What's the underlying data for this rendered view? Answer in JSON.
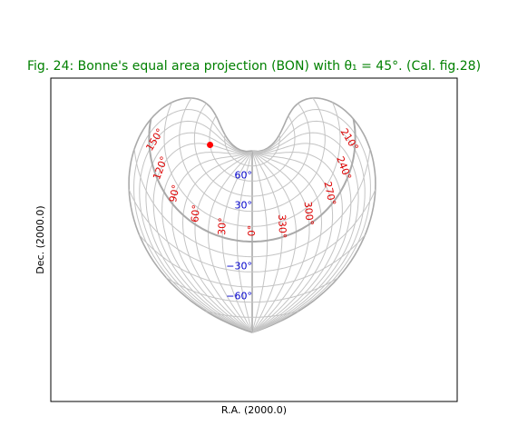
{
  "chart_data": {
    "type": "bonne",
    "title": "Fig. 24: Bonne's equal area projection (BON) with θ₁ = 45°. (Cal. fig.28)",
    "xlabel": "R.A. (2000.0)",
    "ylabel": "Dec. (2000.0)",
    "lon_ticks": [
      {
        "value": 0,
        "label": "0°"
      },
      {
        "value": 30,
        "label": "30°"
      },
      {
        "value": 60,
        "label": "60°"
      },
      {
        "value": 90,
        "label": "90°"
      },
      {
        "value": 120,
        "label": "120°"
      },
      {
        "value": 150,
        "label": "150°"
      },
      {
        "value": 210,
        "label": "210°"
      },
      {
        "value": 240,
        "label": "240°"
      },
      {
        "value": 270,
        "label": "270°"
      },
      {
        "value": 300,
        "label": "300°"
      },
      {
        "value": 330,
        "label": "330°"
      }
    ],
    "lat_ticks": [
      {
        "value": 60,
        "label": "60°"
      },
      {
        "value": 30,
        "label": "30°"
      },
      {
        "value": -30,
        "label": "−30°"
      },
      {
        "value": -60,
        "label": "−60°"
      }
    ],
    "marker": {
      "lon": 120,
      "lat": 60,
      "color": "#ff0000"
    },
    "lon_tick_color": "#dd0000",
    "lat_tick_color": "#0000cc",
    "title_color": "#008000"
  }
}
